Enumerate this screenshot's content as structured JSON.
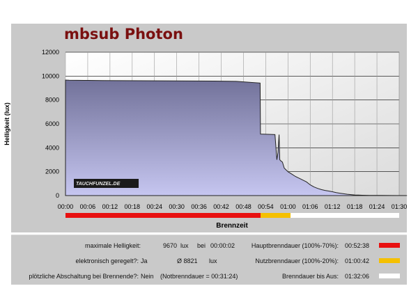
{
  "title": "mbsub Photon",
  "logo_text": "TAUCHFUNZEL.DE",
  "chart_data": {
    "type": "area",
    "title": "",
    "xlabel": "Brennzeit",
    "ylabel": "Helligkeit (lux)",
    "ylim": [
      0,
      12000
    ],
    "y_ticks": [
      0,
      2000,
      4000,
      6000,
      8000,
      10000,
      12000
    ],
    "x_tick_labels": [
      "00:00",
      "00:06",
      "00:12",
      "00:18",
      "00:24",
      "00:30",
      "00:36",
      "00:42",
      "00:48",
      "00:54",
      "01:00",
      "01:06",
      "01:12",
      "01:18",
      "01:24",
      "01:30"
    ],
    "x_unit": "minutes",
    "xlim": [
      0,
      90
    ],
    "grid": true,
    "series": [
      {
        "values_x": [
          0,
          1,
          5,
          10,
          20,
          30,
          40,
          46,
          52.5,
          52.6,
          55.5,
          56.5,
          57.0,
          57.3,
          57.6,
          57.8,
          58.1,
          58.5,
          59.0,
          60.0,
          61.0,
          62.0,
          63.0,
          64.0,
          65.0,
          66.0,
          67.0,
          68.0,
          69.0,
          70.0,
          71.0,
          72.0,
          73.0,
          74.0,
          75.0,
          76.0,
          77.0,
          78.0,
          79.0,
          80.0,
          82.0,
          85.0,
          88.0,
          92.1
        ],
        "values_y": [
          9670,
          9660,
          9640,
          9630,
          9610,
          9600,
          9580,
          9560,
          9420,
          5150,
          5120,
          5100,
          3000,
          3600,
          5100,
          3000,
          2900,
          2800,
          2300,
          2000,
          1800,
          1600,
          1450,
          1300,
          1150,
          900,
          720,
          600,
          500,
          430,
          380,
          320,
          250,
          200,
          150,
          110,
          80,
          55,
          40,
          30,
          20,
          10,
          5,
          0
        ]
      }
    ],
    "phase_bar": [
      {
        "from": 0,
        "to": 52.63,
        "color": "#e81010"
      },
      {
        "from": 52.63,
        "to": 60.7,
        "color": "#f5c000"
      },
      {
        "from": 60.7,
        "to": 92.1,
        "color": "#ffffff"
      }
    ]
  },
  "info": {
    "max_label": "maximale Helligkeit:",
    "max_value": "9670",
    "max_unit": "lux",
    "max_at": "bei",
    "max_time": "00:00:02",
    "reg_label": "elektronisch geregelt?:",
    "reg_value": "Ja",
    "avg_value": "Ø 8821",
    "avg_unit": "lux",
    "shut_label": "plötzliche Abschaltung bei Brennende?:",
    "shut_value": "Nein",
    "emerg_text": "(Notbrenndauer = 00:31:24)",
    "main_label": "Hauptbrenndauer (100%-70%):",
    "main_value": "00:52:38",
    "use_label": "Nutzbrenndauer (100%-20%):",
    "use_value": "01:00:42",
    "off_label": "Brenndauer bis Aus:",
    "off_value": "01:32:06",
    "colors": {
      "main": "#e81010",
      "use": "#f5c000",
      "off": "#ffffff"
    }
  }
}
